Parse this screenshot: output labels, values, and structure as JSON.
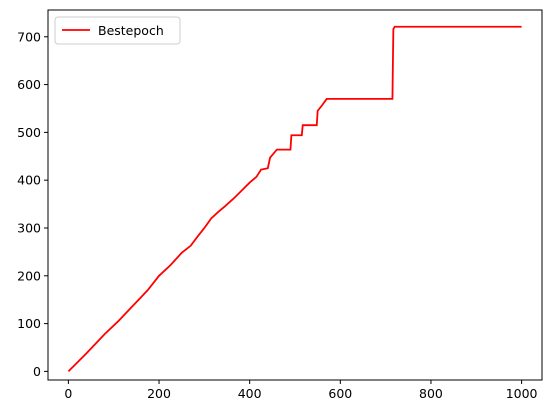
{
  "chart_data": {
    "type": "line",
    "title": "",
    "xlabel": "",
    "ylabel": "",
    "xlim": [
      -45,
      1045
    ],
    "ylim": [
      -18,
      756
    ],
    "xticks": [
      0,
      200,
      400,
      600,
      800,
      1000
    ],
    "yticks": [
      0,
      100,
      200,
      300,
      400,
      500,
      600,
      700
    ],
    "xtick_labels": [
      "0",
      "200",
      "400",
      "600",
      "800",
      "1000"
    ],
    "ytick_labels": [
      "0",
      "100",
      "200",
      "300",
      "400",
      "500",
      "600",
      "700"
    ],
    "grid": false,
    "legend_position": "top-left",
    "series": [
      {
        "name": "Bestepoch",
        "color": "#ff0000",
        "points": [
          [
            0,
            0
          ],
          [
            40,
            38
          ],
          [
            80,
            78
          ],
          [
            110,
            105
          ],
          [
            130,
            125
          ],
          [
            150,
            145
          ],
          [
            175,
            170
          ],
          [
            200,
            200
          ],
          [
            225,
            222
          ],
          [
            250,
            248
          ],
          [
            270,
            263
          ],
          [
            285,
            282
          ],
          [
            300,
            300
          ],
          [
            315,
            320
          ],
          [
            330,
            333
          ],
          [
            345,
            345
          ],
          [
            365,
            362
          ],
          [
            380,
            376
          ],
          [
            400,
            395
          ],
          [
            415,
            407
          ],
          [
            425,
            422
          ],
          [
            440,
            425
          ],
          [
            445,
            447
          ],
          [
            460,
            464
          ],
          [
            490,
            464
          ],
          [
            492,
            494
          ],
          [
            515,
            494
          ],
          [
            517,
            515
          ],
          [
            548,
            515
          ],
          [
            550,
            545
          ],
          [
            560,
            557
          ],
          [
            570,
            570
          ],
          [
            715,
            570
          ],
          [
            717,
            716
          ],
          [
            720,
            721
          ],
          [
            1000,
            721
          ]
        ]
      }
    ]
  }
}
